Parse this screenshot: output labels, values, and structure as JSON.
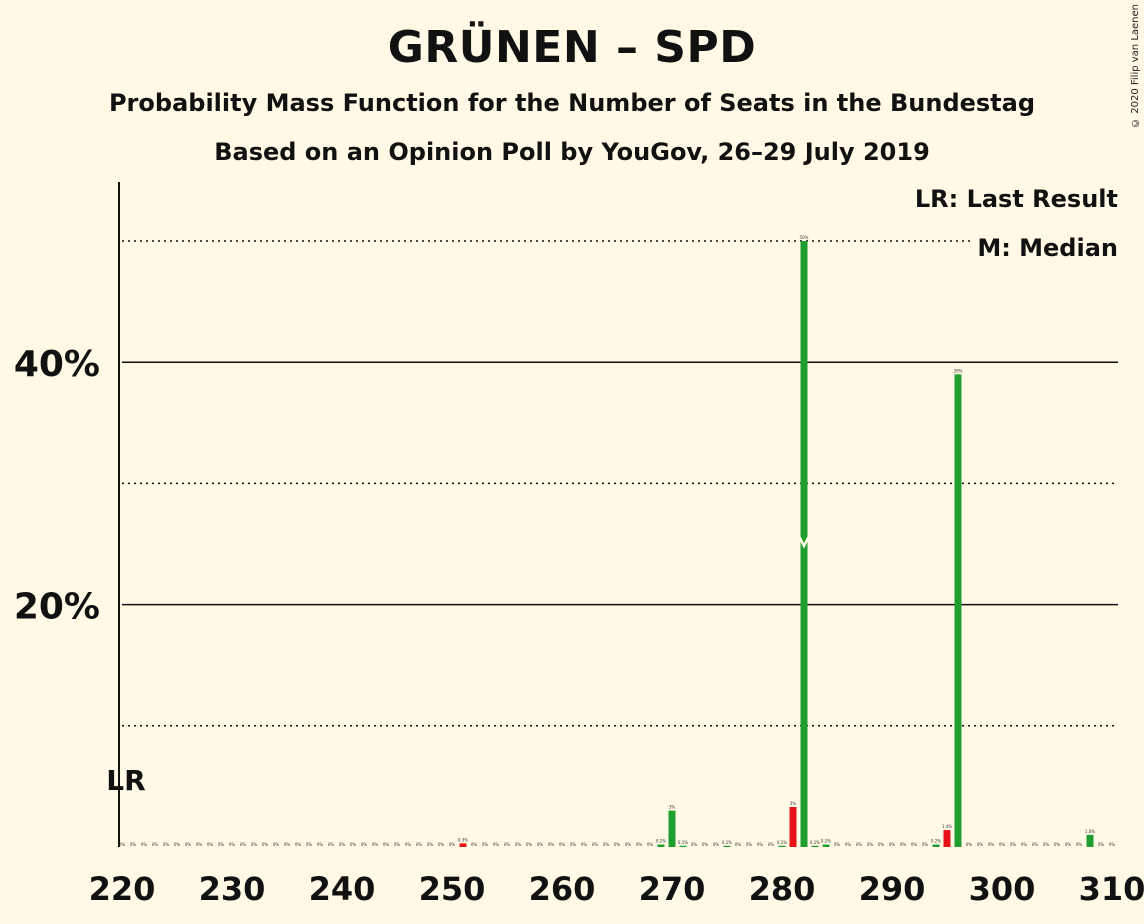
{
  "header": {
    "title": "GRÜNEN – SPD",
    "subtitle": "Probability Mass Function for the Number of Seats in the Bundestag",
    "subtitle2": "Based on an Opinion Poll by YouGov, 26–29 July 2019",
    "copyright": "© 2020 Filip van Laenen"
  },
  "legend": {
    "lr": "LR: Last Result",
    "median": "M: Median"
  },
  "colors": {
    "background": "#FFF9E5",
    "bar_green": "#1E9E2E",
    "bar_red": "#E8131A"
  },
  "chart_data": {
    "type": "bar",
    "xlim": [
      220,
      310
    ],
    "ylim": [
      0,
      55
    ],
    "x_ticks": [
      "220",
      "230",
      "240",
      "250",
      "260",
      "270",
      "280",
      "290",
      "300",
      "310"
    ],
    "y_ticks": [
      {
        "value": 20,
        "label": "20%"
      },
      {
        "value": 40,
        "label": "40%"
      }
    ],
    "dotted_gridlines": [
      10,
      30,
      50
    ],
    "last_result": {
      "seat": 220,
      "label": "LR"
    },
    "median": {
      "seat": 282,
      "label": "M"
    },
    "bars": [
      {
        "seat": 251,
        "value": 0.3,
        "label": "0.3%",
        "color": "red"
      },
      {
        "seat": 269,
        "value": 0.2,
        "label": "0.2%",
        "color": "green"
      },
      {
        "seat": 270,
        "value": 3.0,
        "label": "3%",
        "color": "green"
      },
      {
        "seat": 271,
        "value": 0.1,
        "label": "0.1%",
        "color": "green"
      },
      {
        "seat": 275,
        "value": 0.1,
        "label": "0.1%",
        "color": "green"
      },
      {
        "seat": 280,
        "value": 0.1,
        "label": "0.1%",
        "color": "green"
      },
      {
        "seat": 281,
        "value": 3.3,
        "label": "3%",
        "color": "red"
      },
      {
        "seat": 282,
        "value": 50.0,
        "label": "50%",
        "color": "green"
      },
      {
        "seat": 283,
        "value": 0.1,
        "label": "0.1%",
        "color": "green"
      },
      {
        "seat": 284,
        "value": 0.2,
        "label": "0.2%",
        "color": "green"
      },
      {
        "seat": 294,
        "value": 0.2,
        "label": "0.2%",
        "color": "green"
      },
      {
        "seat": 295,
        "value": 1.4,
        "label": "1.4%",
        "color": "red"
      },
      {
        "seat": 296,
        "value": 39.0,
        "label": "39%",
        "color": "green"
      },
      {
        "seat": 308,
        "value": 1.0,
        "label": "1.0%",
        "color": "green"
      }
    ],
    "zero_label": "0%"
  }
}
